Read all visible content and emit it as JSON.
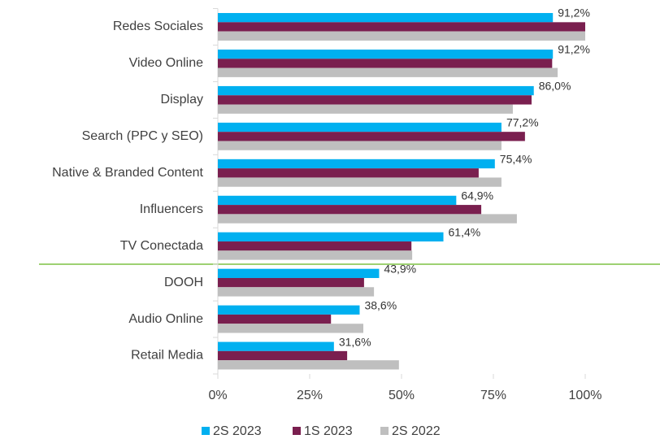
{
  "chart_data": {
    "type": "bar",
    "orientation": "horizontal",
    "categories": [
      "Redes Sociales",
      "Video Online",
      "Display",
      "Search (PPC y SEO)",
      "Native & Branded Content",
      "Influencers",
      "TV Conectada",
      "DOOH",
      "Audio Online",
      "Retail Media"
    ],
    "series": [
      {
        "name": "2S 2023",
        "color": "#00b0f0",
        "values": [
          91.2,
          91.2,
          86.0,
          77.2,
          75.4,
          64.9,
          61.4,
          43.9,
          38.6,
          31.6
        ],
        "value_labels": [
          "91,2%",
          "91,2%",
          "86,0%",
          "77,2%",
          "75,4%",
          "64,9%",
          "61,4%",
          "43,9%",
          "38,6%",
          "31,6%"
        ]
      },
      {
        "name": "1S 2023",
        "color": "#7a1f4f",
        "values": [
          100,
          91,
          85.4,
          83.6,
          71.0,
          71.7,
          52.7,
          39.8,
          30.8,
          35.2
        ]
      },
      {
        "name": "2S 2022",
        "color": "#bfbfbf",
        "values": [
          100,
          92.5,
          80.3,
          77.2,
          77.2,
          81.4,
          52.9,
          42.5,
          39.6,
          49.3
        ]
      }
    ],
    "xlim": [
      0,
      100
    ],
    "xticks": [
      {
        "value": 0,
        "label": "0%"
      },
      {
        "value": 25,
        "label": "25%"
      },
      {
        "value": 50,
        "label": "50%"
      },
      {
        "value": 75,
        "label": "75%"
      },
      {
        "value": 100,
        "label": "100%"
      }
    ],
    "legend": "bottom"
  }
}
